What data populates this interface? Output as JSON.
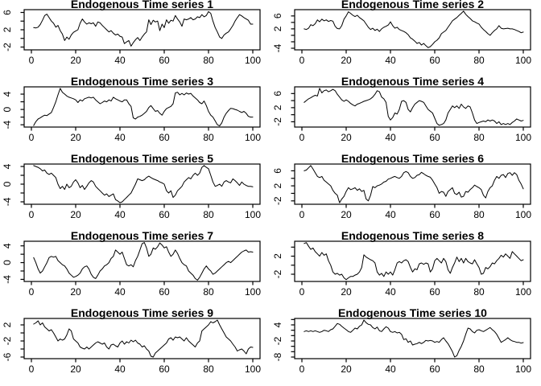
{
  "page": {
    "background": "#ffffff",
    "foreground": "#000000"
  },
  "layout_hint": {
    "rows": 5,
    "cols": 2,
    "grid_order": "row-major",
    "grid": "off",
    "legend": "none"
  },
  "chart_data": [
    {
      "type": "line",
      "title": "Endogenous Time series 1",
      "xlabel": "",
      "ylabel": "",
      "x_start": 1,
      "x_step": 1,
      "xticks": [
        0,
        20,
        40,
        60,
        80,
        100
      ],
      "xlim": [
        0,
        100
      ],
      "ylim": [
        -2.65,
        6.65
      ],
      "ytick_step": 2,
      "yticks_labeled": [
        -2,
        2,
        6
      ],
      "line_color": "#000000",
      "values": [
        2.5,
        2.4,
        2.6,
        3.2,
        4.2,
        5.3,
        5.6,
        4.8,
        4.0,
        3.5,
        2.6,
        3.0,
        1.8,
        1.0,
        -0.5,
        0.3,
        -0.2,
        0.8,
        1.4,
        1.7,
        2.0,
        3.5,
        4.5,
        3.8,
        3.3,
        3.6,
        3.4,
        3.6,
        2.8,
        3.8,
        3.6,
        3.0,
        2.5,
        2.0,
        1.5,
        1.8,
        1.2,
        0.8,
        1.0,
        0.5,
        0.3,
        -1.2,
        -0.8,
        -0.5,
        -1.8,
        -1.0,
        -0.3,
        0.2,
        -0.5,
        0.3,
        1.0,
        1.5,
        4.3,
        3.2,
        4.2,
        3.8,
        4.0,
        1.8,
        3.3,
        2.5,
        4.3,
        3.5,
        4.2,
        4.0,
        5.3,
        4.5,
        3.8,
        2.8,
        4.5,
        4.3,
        4.5,
        4.8,
        4.3,
        4.5,
        5.0,
        4.8,
        5.5,
        5.0,
        5.3,
        6.2,
        5.8,
        4.0,
        2.5,
        1.5,
        0.3,
        0.0,
        0.8,
        1.2,
        1.5,
        2.2,
        3.0,
        4.0,
        4.8,
        5.5,
        5.2,
        4.8,
        4.5,
        4.2,
        3.3,
        3.3
      ]
    },
    {
      "type": "line",
      "title": "Endogenous Time series 2",
      "xlabel": "",
      "ylabel": "",
      "x_start": 1,
      "x_step": 1,
      "xticks": [
        0,
        20,
        40,
        60,
        80,
        100
      ],
      "xlim": [
        0,
        100
      ],
      "ylim": [
        -4.5,
        7.95
      ],
      "ytick_step": 2,
      "yticks_labeled": [
        -4,
        2,
        6
      ],
      "line_color": "#000000",
      "values": [
        2.0,
        1.8,
        2.2,
        3.3,
        3.0,
        3.6,
        4.8,
        4.2,
        5.0,
        4.5,
        4.8,
        4.3,
        4.6,
        4.4,
        2.8,
        2.1,
        2.0,
        3.0,
        5.0,
        6.0,
        7.3,
        6.8,
        6.2,
        5.8,
        6.2,
        5.5,
        5.0,
        4.5,
        3.5,
        2.5,
        1.8,
        2.2,
        1.5,
        1.9,
        1.2,
        2.0,
        2.5,
        2.8,
        3.2,
        4.2,
        3.0,
        2.2,
        2.5,
        1.8,
        1.5,
        1.2,
        0.8,
        0.2,
        -0.8,
        -1.2,
        -1.8,
        -2.5,
        -2.2,
        -3.0,
        -2.5,
        -3.2,
        -3.8,
        -3.5,
        -2.8,
        -2.0,
        -1.5,
        -0.8,
        0.5,
        1.0,
        1.5,
        2.5,
        3.5,
        4.5,
        5.0,
        5.5,
        6.2,
        6.8,
        7.5,
        6.5,
        5.8,
        5.2,
        4.5,
        4.2,
        3.8,
        3.5,
        2.5,
        1.8,
        1.2,
        0.5,
        0.0,
        0.8,
        1.5,
        2.0,
        3.0,
        2.2,
        2.0,
        2.1,
        2.2,
        2.0,
        2.0,
        1.8,
        1.5,
        1.2,
        0.8,
        1.0
      ]
    },
    {
      "type": "line",
      "title": "Endogenous Time series 3",
      "xlabel": "",
      "ylabel": "",
      "x_start": 1,
      "x_step": 1,
      "xticks": [
        0,
        20,
        40,
        60,
        80,
        100
      ],
      "xlim": [
        0,
        100
      ],
      "ylim": [
        -4.6,
        5.9
      ],
      "ytick_step": 2,
      "yticks_labeled": [
        -4,
        0,
        4
      ],
      "line_color": "#000000",
      "values": [
        -4.2,
        -3.2,
        -2.5,
        -2.2,
        -1.8,
        -1.5,
        -1.6,
        -1.2,
        -0.8,
        0.5,
        2.0,
        3.8,
        5.5,
        4.5,
        4.0,
        3.5,
        3.2,
        3.0,
        2.8,
        2.5,
        1.8,
        2.5,
        2.2,
        2.8,
        3.0,
        3.2,
        3.0,
        3.2,
        2.5,
        2.0,
        1.5,
        1.8,
        2.2,
        2.0,
        2.5,
        2.2,
        3.2,
        2.8,
        2.5,
        2.2,
        2.0,
        2.5,
        2.5,
        1.5,
        0.8,
        -2.2,
        -2.5,
        -2.0,
        -1.8,
        -1.5,
        -1.0,
        -0.5,
        0.5,
        1.0,
        0.2,
        -0.5,
        -0.3,
        -1.0,
        -1.5,
        -0.5,
        0.2,
        0.5,
        0.8,
        1.5,
        4.3,
        4.5,
        3.8,
        4.2,
        3.8,
        4.3,
        4.0,
        4.2,
        3.5,
        3.0,
        2.5,
        1.8,
        1.5,
        2.2,
        1.0,
        -0.5,
        -1.5,
        -2.0,
        -3.0,
        -4.0,
        -4.3,
        -3.5,
        -2.0,
        -1.0,
        -0.3,
        0.3,
        0.2,
        0.0,
        -0.2,
        -0.5,
        -0.8,
        -0.5,
        -1.0,
        -1.8,
        -2.0,
        -2.0
      ]
    },
    {
      "type": "line",
      "title": "Endogenous Time series 4",
      "xlabel": "",
      "ylabel": "",
      "x_start": 1,
      "x_step": 1,
      "xticks": [
        0,
        20,
        40,
        60,
        80,
        100
      ],
      "xlim": [
        0,
        100
      ],
      "ylim": [
        -3.5,
        7.9
      ],
      "ytick_step": 2,
      "yticks_labeled": [
        -2,
        2,
        6
      ],
      "line_color": "#000000",
      "values": [
        3.5,
        4.0,
        4.5,
        4.8,
        5.2,
        5.5,
        5.3,
        7.5,
        6.2,
        6.8,
        7.0,
        6.5,
        6.8,
        7.2,
        6.8,
        5.8,
        5.0,
        4.2,
        3.8,
        4.2,
        3.8,
        3.2,
        2.8,
        2.5,
        3.0,
        3.2,
        3.5,
        3.8,
        4.0,
        4.2,
        4.5,
        5.0,
        5.8,
        6.8,
        6.5,
        5.0,
        4.5,
        3.5,
        -0.5,
        -1.5,
        -0.8,
        0.5,
        0.2,
        1.5,
        3.8,
        4.0,
        3.5,
        1.5,
        0.8,
        2.0,
        3.0,
        3.5,
        4.0,
        3.8,
        3.5,
        2.5,
        1.5,
        1.0,
        0.5,
        -1.0,
        -2.5,
        -3.0,
        -2.8,
        -2.5,
        -1.5,
        0.5,
        1.5,
        2.5,
        2.0,
        2.5,
        1.8,
        3.0,
        2.2,
        1.8,
        2.5,
        2.2,
        0.5,
        -1.5,
        -2.5,
        -2.2,
        -2.0,
        -1.8,
        -2.0,
        -1.5,
        -1.8,
        -1.5,
        -1.8,
        -2.5,
        -2.0,
        -2.8,
        -2.5,
        -2.8,
        -2.5,
        -2.8,
        -2.2,
        -1.8,
        -1.2,
        -1.5,
        -1.8,
        -1.6
      ]
    },
    {
      "type": "line",
      "title": "Endogenous Time series 5",
      "xlabel": "",
      "ylabel": "",
      "x_start": 1,
      "x_step": 1,
      "xticks": [
        0,
        20,
        40,
        60,
        80,
        100
      ],
      "xlim": [
        0,
        100
      ],
      "ylim": [
        -4.55,
        4.55
      ],
      "ytick_step": 2,
      "yticks_labeled": [
        -4,
        0,
        4
      ],
      "line_color": "#000000",
      "values": [
        4.2,
        4.0,
        3.8,
        3.5,
        3.0,
        3.2,
        2.5,
        2.2,
        2.5,
        2.0,
        1.5,
        0.0,
        -1.0,
        -0.5,
        -1.2,
        0.0,
        -0.8,
        -0.5,
        0.5,
        1.0,
        0.3,
        -0.8,
        -0.3,
        -1.2,
        -0.5,
        0.3,
        0.8,
        0.5,
        -0.5,
        -1.0,
        -1.5,
        -2.0,
        -2.5,
        -2.2,
        -2.8,
        -2.5,
        -2.2,
        -3.5,
        -3.8,
        -4.2,
        -4.0,
        -3.5,
        -3.0,
        -2.5,
        -2.0,
        -1.0,
        0.0,
        1.2,
        1.0,
        0.8,
        1.0,
        1.5,
        1.8,
        1.5,
        1.2,
        1.0,
        0.8,
        0.5,
        0.3,
        0.0,
        -1.5,
        -2.0,
        -1.5,
        -3.0,
        -2.5,
        -1.5,
        -1.0,
        -0.5,
        0.5,
        1.0,
        1.5,
        1.2,
        2.0,
        2.5,
        2.0,
        2.5,
        3.8,
        4.2,
        3.8,
        3.5,
        2.0,
        0.5,
        -0.5,
        -0.3,
        0.0,
        -0.5,
        0.5,
        0.8,
        0.5,
        0.3,
        1.2,
        0.8,
        0.3,
        -0.3,
        0.5,
        0.0,
        -0.3,
        -0.5,
        -0.5,
        -0.6
      ]
    },
    {
      "type": "line",
      "title": "Endogenous Time series 6",
      "xlabel": "",
      "ylabel": "",
      "x_start": 1,
      "x_step": 1,
      "xticks": [
        0,
        20,
        40,
        60,
        80,
        100
      ],
      "xlim": [
        0,
        100
      ],
      "ylim": [
        -2.9,
        7.8
      ],
      "ytick_step": 2,
      "yticks_labeled": [
        -2,
        2,
        6
      ],
      "line_color": "#000000",
      "values": [
        6.0,
        6.2,
        6.8,
        7.4,
        6.5,
        5.5,
        4.5,
        4.2,
        4.5,
        3.5,
        3.0,
        2.5,
        2.0,
        0.8,
        0.0,
        -0.5,
        -2.5,
        -1.5,
        -0.8,
        0.5,
        1.5,
        1.0,
        1.2,
        1.5,
        0.8,
        1.2,
        0.5,
        0.8,
        -1.5,
        -2.0,
        -0.5,
        1.8,
        1.5,
        2.0,
        2.2,
        2.5,
        3.0,
        3.2,
        3.8,
        4.0,
        4.3,
        4.5,
        4.2,
        4.0,
        4.5,
        5.5,
        5.8,
        5.5,
        4.5,
        4.0,
        4.2,
        4.8,
        5.0,
        5.6,
        5.2,
        4.8,
        4.5,
        4.3,
        3.5,
        2.5,
        1.5,
        0.0,
        0.5,
        0.3,
        -0.8,
        0.5,
        1.0,
        1.5,
        0.0,
        -0.3,
        0.3,
        -1.0,
        -0.8,
        0.5,
        0.3,
        1.0,
        1.5,
        2.2,
        1.8,
        1.5,
        1.0,
        -0.5,
        -1.2,
        0.5,
        1.5,
        2.0,
        3.5,
        4.5,
        4.0,
        4.8,
        5.0,
        4.2,
        5.3,
        5.5,
        4.8,
        5.5,
        5.0,
        3.5,
        2.5,
        1.2
      ]
    },
    {
      "type": "line",
      "title": "Endogenous Time series 7",
      "xlabel": "",
      "ylabel": "",
      "x_start": 1,
      "x_step": 1,
      "xticks": [
        0,
        20,
        40,
        60,
        80,
        100
      ],
      "xlim": [
        0,
        100
      ],
      "ylim": [
        -4.5,
        5.1
      ],
      "ytick_step": 2,
      "yticks_labeled": [
        -4,
        0,
        4
      ],
      "line_color": "#000000",
      "values": [
        1.2,
        0.0,
        -1.5,
        -2.5,
        -2.0,
        -1.0,
        0.0,
        1.2,
        1.5,
        1.3,
        1.5,
        0.5,
        0.0,
        -0.5,
        -0.8,
        -1.5,
        -2.5,
        -3.0,
        -3.5,
        -3.3,
        -3.0,
        -2.5,
        -1.5,
        -1.0,
        -0.8,
        -1.5,
        -2.8,
        -3.5,
        -3.8,
        -3.0,
        -2.0,
        -1.5,
        -0.8,
        -0.5,
        0.0,
        1.0,
        1.5,
        3.0,
        2.5,
        2.0,
        2.5,
        1.0,
        -0.5,
        -0.8,
        -0.5,
        -1.0,
        0.5,
        1.5,
        3.0,
        4.5,
        4.8,
        3.5,
        1.5,
        2.0,
        3.5,
        3.2,
        3.8,
        4.7,
        4.2,
        3.5,
        3.8,
        2.5,
        1.5,
        2.0,
        3.0,
        2.2,
        1.0,
        0.0,
        -0.5,
        -0.8,
        -2.0,
        -2.5,
        -3.0,
        -3.8,
        -4.2,
        -3.5,
        -2.5,
        -1.5,
        -0.8,
        -1.5,
        -2.0,
        -2.8,
        -2.5,
        -2.0,
        -1.5,
        -1.0,
        -0.5,
        0.0,
        0.3,
        0.0,
        0.5,
        1.0,
        1.5,
        2.0,
        2.5,
        2.8,
        3.0,
        2.5,
        2.6,
        2.5
      ]
    },
    {
      "type": "line",
      "title": "Endogenous Time series 8",
      "xlabel": "",
      "ylabel": "",
      "x_start": 1,
      "x_step": 1,
      "xticks": [
        0,
        20,
        40,
        60,
        80,
        100
      ],
      "xlim": [
        0,
        100
      ],
      "ylim": [
        -3.6,
        5.3
      ],
      "ytick_step": 2,
      "yticks_labeled": [
        -2,
        2
      ],
      "line_color": "#000000",
      "values": [
        4.8,
        5.0,
        4.2,
        3.5,
        3.8,
        3.0,
        2.5,
        2.0,
        2.8,
        2.2,
        2.5,
        1.0,
        0.0,
        -1.5,
        -2.0,
        -1.8,
        -2.2,
        -2.0,
        -2.8,
        -3.2,
        -2.8,
        -2.5,
        -2.5,
        -2.2,
        -2.0,
        -1.5,
        -0.5,
        2.3,
        1.8,
        1.5,
        1.2,
        1.0,
        0.5,
        -1.5,
        -2.2,
        -1.8,
        -2.5,
        -1.5,
        -2.0,
        -1.5,
        -2.2,
        -1.0,
        0.5,
        0.8,
        0.5,
        1.0,
        1.2,
        0.8,
        -0.5,
        -1.5,
        -0.8,
        -1.0,
        0.3,
        0.5,
        0.2,
        0.5,
        0.3,
        -1.5,
        -0.8,
        1.0,
        1.5,
        1.0,
        0.5,
        1.5,
        0.8,
        -1.0,
        -1.8,
        -0.5,
        0.5,
        1.8,
        0.8,
        1.5,
        0.5,
        1.5,
        0.8,
        0.5,
        0.3,
        1.2,
        0.3,
        -0.5,
        -2.0,
        -1.8,
        -0.5,
        -0.8,
        -0.3,
        0.5,
        0.3,
        1.0,
        1.5,
        2.2,
        1.8,
        2.5,
        2.0,
        1.5,
        3.0,
        2.5,
        2.0,
        1.5,
        1.0,
        1.2
      ]
    },
    {
      "type": "line",
      "title": "Endogenous Time series 9",
      "xlabel": "",
      "ylabel": "",
      "x_start": 1,
      "x_step": 1,
      "xticks": [
        0,
        20,
        40,
        60,
        80,
        100
      ],
      "xlim": [
        0,
        100
      ],
      "ylim": [
        -6.4,
        3.6
      ],
      "ytick_step": 2,
      "yticks_labeled": [
        -6,
        -2,
        2
      ],
      "line_color": "#000000",
      "values": [
        2.2,
        2.5,
        3.0,
        2.0,
        2.5,
        1.5,
        1.0,
        0.5,
        0.8,
        0.0,
        -1.0,
        -2.0,
        -1.5,
        -1.8,
        -1.5,
        -0.5,
        1.0,
        0.5,
        -1.5,
        -2.0,
        -2.5,
        -3.5,
        -3.8,
        -4.0,
        -3.5,
        -4.0,
        -3.5,
        -3.0,
        -2.5,
        -2.2,
        -2.5,
        -2.8,
        -2.5,
        -3.5,
        -4.0,
        -3.0,
        -2.8,
        -3.2,
        -3.5,
        -2.5,
        -2.0,
        -2.8,
        -2.2,
        -2.5,
        -1.8,
        -2.2,
        -1.8,
        -2.5,
        -2.8,
        -3.5,
        -3.2,
        -4.0,
        -4.5,
        -5.8,
        -6.0,
        -5.0,
        -4.5,
        -4.0,
        -3.5,
        -3.0,
        -2.5,
        -1.5,
        -1.2,
        -1.8,
        -1.0,
        -1.2,
        -1.0,
        -1.5,
        -2.0,
        -1.2,
        -2.0,
        -2.5,
        -3.0,
        -3.5,
        -2.5,
        -2.0,
        0.5,
        1.0,
        1.5,
        2.0,
        2.8,
        2.5,
        2.8,
        3.2,
        2.0,
        1.0,
        0.0,
        -1.0,
        -1.5,
        -2.0,
        -2.8,
        -3.5,
        -4.5,
        -4.2,
        -4.0,
        -4.5,
        -5.2,
        -4.0,
        -3.5,
        -3.6
      ]
    },
    {
      "type": "line",
      "title": "Endogenous Time series 10",
      "xlabel": "",
      "ylabel": "",
      "x_start": 1,
      "x_step": 1,
      "xticks": [
        0,
        20,
        40,
        60,
        80,
        100
      ],
      "xlim": [
        0,
        100
      ],
      "ylim": [
        -8.6,
        6.4
      ],
      "ytick_step": 2,
      "yticks_labeled": [
        -8,
        -2,
        4
      ],
      "line_color": "#000000",
      "values": [
        1.5,
        1.8,
        1.5,
        1.8,
        1.5,
        1.8,
        1.5,
        1.2,
        1.5,
        2.0,
        1.8,
        1.5,
        2.2,
        2.5,
        3.5,
        4.5,
        4.2,
        3.5,
        2.8,
        2.2,
        1.5,
        1.2,
        2.0,
        2.8,
        2.5,
        3.5,
        4.0,
        5.8,
        4.8,
        4.2,
        4.0,
        3.0,
        2.5,
        3.2,
        1.8,
        1.5,
        2.5,
        3.3,
        2.8,
        1.5,
        1.2,
        1.5,
        1.0,
        1.2,
        0.5,
        -1.5,
        -1.2,
        -2.5,
        -2.0,
        -3.5,
        -3.2,
        -3.0,
        -2.5,
        -3.0,
        -2.5,
        -1.8,
        -2.0,
        -1.8,
        -2.0,
        -2.5,
        -2.2,
        -2.5,
        -1.5,
        -0.8,
        -2.0,
        -3.0,
        -4.5,
        -6.0,
        -8.0,
        -7.5,
        -5.5,
        -4.0,
        -2.0,
        0.5,
        2.8,
        2.5,
        1.5,
        1.0,
        2.0,
        2.2,
        1.8,
        1.5,
        2.0,
        2.5,
        3.0,
        2.2,
        1.5,
        0.5,
        -1.0,
        -2.5,
        -2.0,
        -1.5,
        -0.8,
        -1.5,
        -2.0,
        -2.2,
        -2.5,
        -2.5,
        -2.8,
        -2.6
      ]
    }
  ]
}
